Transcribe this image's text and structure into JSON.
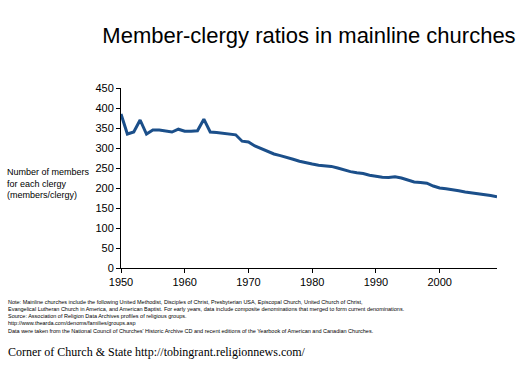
{
  "chart_data": {
    "type": "line",
    "title": "Member-clergy ratios in mainline churches",
    "ylabel": [
      "Number of members",
      "for each clergy",
      "(members/clergy)"
    ],
    "x": [
      1950,
      1951,
      1952,
      1953,
      1954,
      1955,
      1956,
      1957,
      1958,
      1959,
      1960,
      1961,
      1962,
      1963,
      1964,
      1965,
      1966,
      1967,
      1968,
      1969,
      1970,
      1971,
      1972,
      1973,
      1974,
      1975,
      1976,
      1977,
      1978,
      1979,
      1980,
      1981,
      1982,
      1983,
      1984,
      1985,
      1986,
      1987,
      1988,
      1989,
      1990,
      1991,
      1992,
      1993,
      1994,
      1995,
      1996,
      1997,
      1998,
      1999,
      2000,
      2001,
      2002,
      2003,
      2004,
      2005,
      2006,
      2007,
      2008,
      2009
    ],
    "values": [
      385,
      335,
      340,
      370,
      335,
      345,
      345,
      342,
      340,
      347,
      342,
      342,
      343,
      372,
      340,
      339,
      337,
      335,
      333,
      317,
      315,
      305,
      298,
      292,
      285,
      281,
      277,
      272,
      267,
      263,
      260,
      257,
      255,
      254,
      250,
      245,
      241,
      238,
      236,
      232,
      229,
      227,
      226,
      228,
      225,
      219,
      215,
      214,
      212,
      205,
      200,
      198,
      196,
      193,
      190,
      188,
      186,
      184,
      181,
      178
    ],
    "color": "#1b4f8a",
    "xlim": [
      1950,
      2009
    ],
    "xticks": [
      1950,
      1960,
      1970,
      1980,
      1990,
      2000
    ],
    "ylim": [
      0,
      450
    ],
    "yticks": [
      0,
      50,
      100,
      150,
      200,
      250,
      300,
      350,
      400,
      450
    ],
    "grid": false,
    "note": [
      "Note: Mainline churches include the following United Methodist, Disciples of Christ, Presbyterian USA, Episcopal Church, United Church of Christ,",
      "Evangelical Lutheran Church in America, and American Baptist. For early years, data include composite denominations that merged to form current denominations.",
      "Source: Association of Religion Data Archives profiles of religious groups.",
      "http://www.thearda.com/denoms/families/groups.asp",
      "Data were taken from the National Council of Churches' Historic Archive CD and recent editions of the Yearbook of American and Canadian Churches."
    ],
    "source": "Corner of Church & State http://tobingrant.religionnews.com/"
  }
}
